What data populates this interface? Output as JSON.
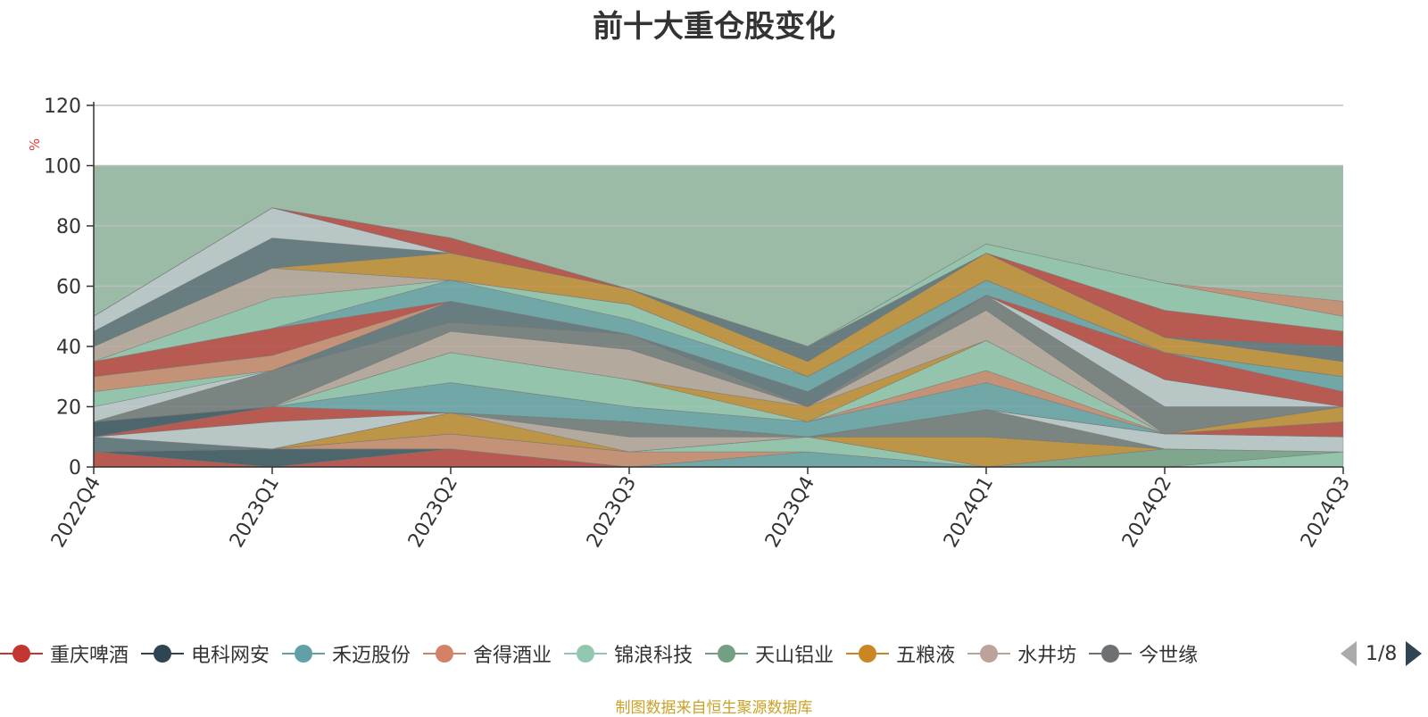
{
  "chart_data": {
    "type": "area",
    "title": "前十大重仓股变化",
    "xlabel": "",
    "ylabel": "%",
    "ylim": [
      0,
      120
    ],
    "yticks": [
      0,
      20,
      40,
      60,
      80,
      100,
      120
    ],
    "grid": true,
    "legend_position": "bottom",
    "categories": [
      "2022Q4",
      "2023Q1",
      "2023Q2",
      "2023Q3",
      "2023Q4",
      "2024Q1",
      "2024Q2",
      "2024Q3"
    ],
    "background_band": {
      "from": 0,
      "to": 100,
      "color": "#9bbba7"
    },
    "series": [
      {
        "name": "重庆啤酒",
        "color": "#c23531",
        "values": [
          5,
          0,
          6,
          0,
          0,
          0,
          0,
          0
        ]
      },
      {
        "name": "电科网安",
        "color": "#2f4554",
        "values": [
          0,
          6,
          0,
          0,
          0,
          0,
          0,
          0
        ]
      },
      {
        "name": "禾迈股份",
        "color": "#61a0a8",
        "values": [
          0,
          0,
          0,
          0,
          5,
          0,
          0,
          0
        ]
      },
      {
        "name": "舍得酒业",
        "color": "#d48265",
        "values": [
          0,
          0,
          5,
          5,
          0,
          0,
          0,
          0
        ]
      },
      {
        "name": "锦浪科技",
        "color": "#91c7ae",
        "values": [
          0,
          0,
          0,
          0,
          5,
          0,
          0,
          5
        ]
      },
      {
        "name": "天山铝业",
        "color": "#749f83",
        "values": [
          0,
          0,
          0,
          0,
          0,
          0,
          6,
          0
        ]
      },
      {
        "name": "五粮液",
        "color": "#ca8622",
        "values": [
          0,
          0,
          7,
          0,
          0,
          10,
          0,
          0
        ]
      },
      {
        "name": "水井坊",
        "color": "#bda29a",
        "values": [
          0,
          0,
          0,
          5,
          0,
          0,
          0,
          0
        ]
      },
      {
        "name": "今世缘",
        "color": "#6e7074",
        "values": [
          0,
          0,
          0,
          5,
          0,
          9,
          0,
          0
        ]
      },
      {
        "name": "",
        "color": "#546570",
        "values": [
          5,
          0,
          0,
          0,
          0,
          0,
          0,
          0
        ]
      },
      {
        "name": "",
        "color": "#c4ccd3",
        "values": [
          0,
          9,
          0,
          0,
          0,
          0,
          5,
          5
        ]
      },
      {
        "name": "",
        "color": "#c23531",
        "values": [
          0,
          5,
          0,
          0,
          0,
          0,
          0,
          5
        ]
      },
      {
        "name": "",
        "color": "#2f4554",
        "values": [
          5,
          0,
          0,
          0,
          0,
          0,
          0,
          0
        ]
      },
      {
        "name": "",
        "color": "#61a0a8",
        "values": [
          0,
          0,
          10,
          5,
          5,
          9,
          0,
          0
        ]
      },
      {
        "name": "",
        "color": "#d48265",
        "values": [
          0,
          0,
          0,
          0,
          0,
          4,
          0,
          0
        ]
      },
      {
        "name": "",
        "color": "#91c7ae",
        "values": [
          0,
          0,
          10,
          9,
          0,
          10,
          0,
          0
        ]
      },
      {
        "name": "",
        "color": "#ca8622",
        "values": [
          0,
          0,
          0,
          0,
          5,
          0,
          0,
          5
        ]
      },
      {
        "name": "",
        "color": "#bda29a",
        "values": [
          0,
          0,
          7,
          10,
          0,
          10,
          0,
          0
        ]
      },
      {
        "name": "",
        "color": "#6e7074",
        "values": [
          0,
          12,
          3,
          5,
          0,
          5,
          9,
          0
        ]
      },
      {
        "name": "",
        "color": "#546570",
        "values": [
          0,
          0,
          7,
          0,
          5,
          0,
          0,
          0
        ]
      },
      {
        "name": "",
        "color": "#c4ccd3",
        "values": [
          5,
          0,
          0,
          0,
          0,
          0,
          9,
          0
        ]
      },
      {
        "name": "",
        "color": "#91c7ae",
        "values": [
          5,
          0,
          0,
          0,
          0,
          0,
          0,
          0
        ]
      },
      {
        "name": "",
        "color": "#d48265",
        "values": [
          5,
          5,
          0,
          0,
          0,
          0,
          0,
          0
        ]
      },
      {
        "name": "",
        "color": "#c23531",
        "values": [
          5,
          9,
          0,
          0,
          0,
          0,
          9,
          5
        ]
      },
      {
        "name": "",
        "color": "#61a0a8",
        "values": [
          0,
          0,
          7,
          5,
          5,
          5,
          0,
          5
        ]
      },
      {
        "name": "",
        "color": "#91c7ae",
        "values": [
          0,
          10,
          0,
          5,
          0,
          0,
          0,
          0
        ]
      },
      {
        "name": "",
        "color": "#bda29a",
        "values": [
          5,
          10,
          0,
          0,
          0,
          0,
          0,
          0
        ]
      },
      {
        "name": "",
        "color": "#ca8622",
        "values": [
          0,
          0,
          9,
          5,
          5,
          9,
          5,
          5
        ]
      },
      {
        "name": "",
        "color": "#546570",
        "values": [
          5,
          10,
          0,
          0,
          5,
          0,
          0,
          5
        ]
      },
      {
        "name": "",
        "color": "#c4ccd3",
        "values": [
          5,
          10,
          0,
          0,
          0,
          0,
          0,
          0
        ]
      },
      {
        "name": "",
        "color": "#c23531",
        "values": [
          0,
          0,
          5,
          0,
          0,
          0,
          9,
          5
        ]
      },
      {
        "name": "",
        "color": "#91c7ae",
        "values": [
          0,
          0,
          0,
          0,
          0,
          3,
          9,
          5
        ]
      },
      {
        "name": "",
        "color": "#d48265",
        "values": [
          0,
          0,
          0,
          0,
          0,
          0,
          0,
          5
        ]
      }
    ]
  },
  "legend": {
    "items": [
      "重庆啤酒",
      "电科网安",
      "禾迈股份",
      "舍得酒业",
      "锦浪科技",
      "天山铝业",
      "五粮液",
      "水井坊",
      "今世缘"
    ],
    "page": "1/8",
    "prev_icon": "triangle-left-icon",
    "next_icon": "triangle-right-icon",
    "prev_color": "#aaaaaa",
    "next_color": "#2f4554"
  },
  "source_note": "制图数据来自恒生聚源数据库"
}
